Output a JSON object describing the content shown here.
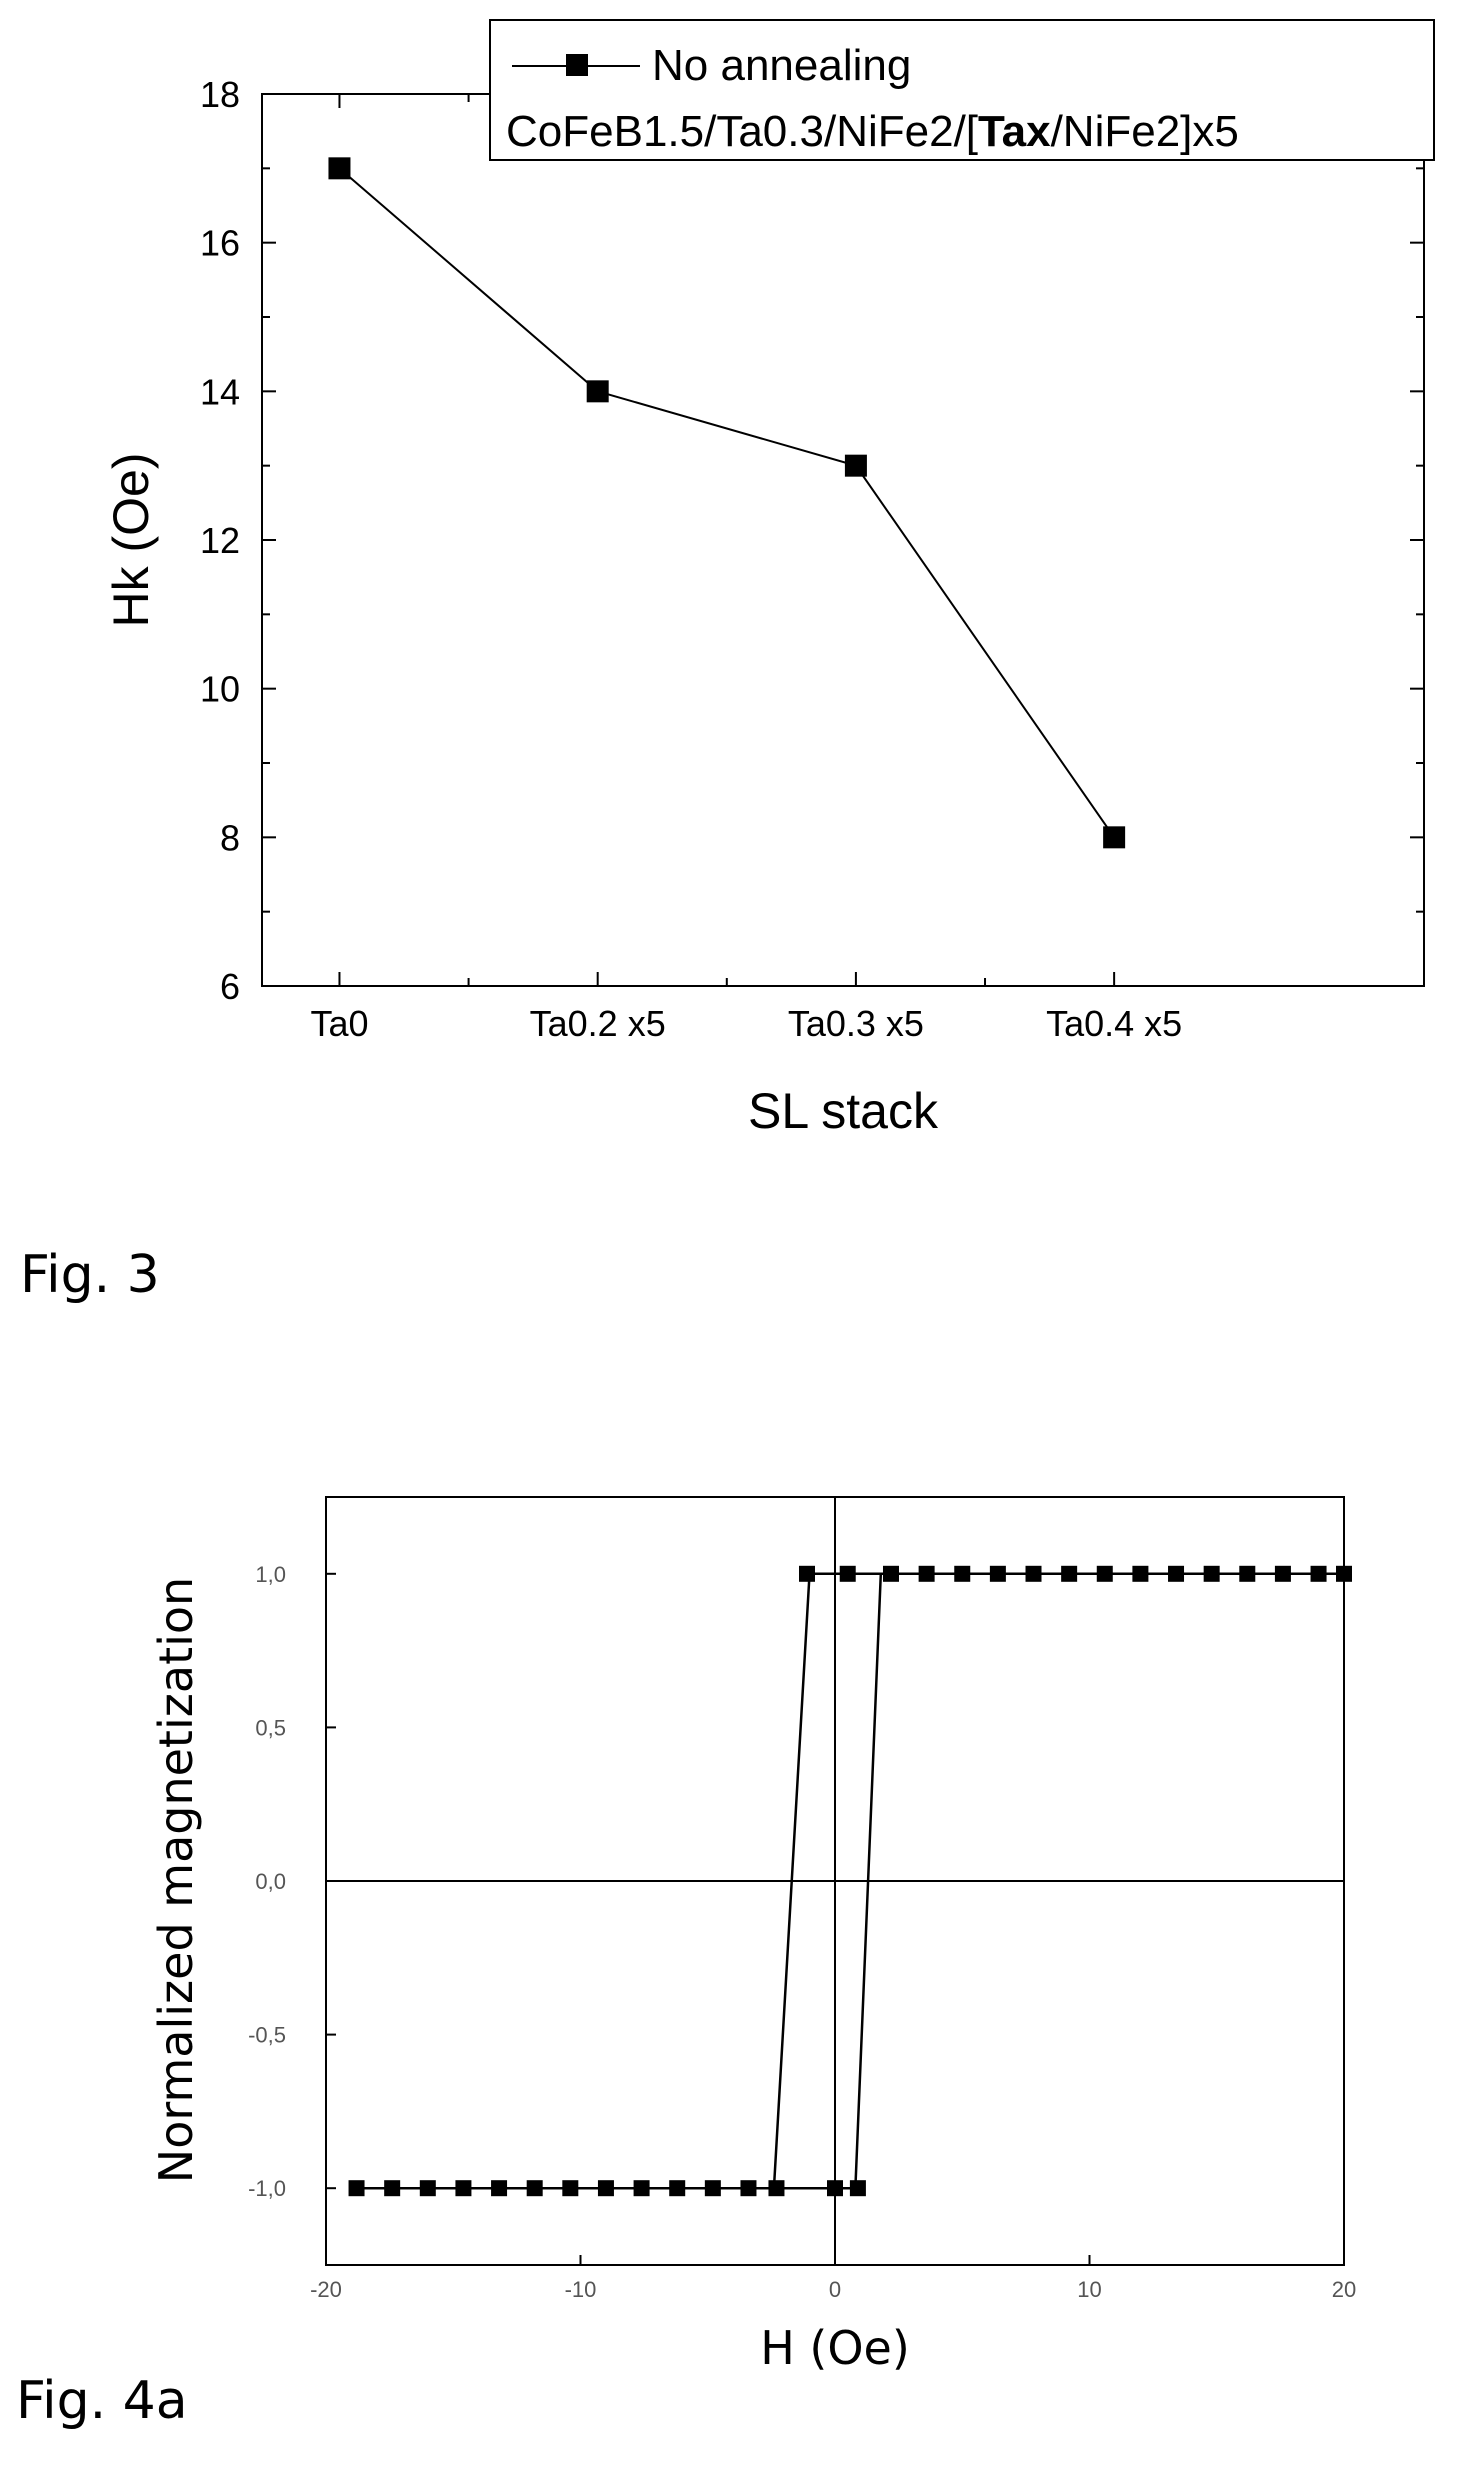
{
  "figure3": {
    "caption": "Fig. 3",
    "legend": {
      "series_label": "No annealing",
      "stack_prefix": "CoFeB1.5/Ta0.3/NiFe2/[",
      "stack_bold": "Tax",
      "stack_suffix": "/NiFe2]x5"
    }
  },
  "figure4a": {
    "caption": "Fig. 4a"
  },
  "chart_data": [
    {
      "type": "line",
      "categories": [
        "Ta0",
        "Ta0.2 x5",
        "Ta0.3 x5",
        "Ta0.4 x5"
      ],
      "series": [
        {
          "name": "No annealing",
          "values": [
            17,
            14,
            13,
            8
          ]
        }
      ],
      "xlabel": "SL stack",
      "ylabel": "Hk (Oe)",
      "ylim": [
        6,
        18
      ],
      "yticks": [
        6,
        8,
        10,
        12,
        14,
        16,
        18
      ],
      "grid": false,
      "legend_position": "top-right",
      "marker": "square",
      "color": "#000000"
    },
    {
      "type": "line",
      "xlabel": "H (Oe)",
      "ylabel": "Normalized magnetization",
      "xlim": [
        -20,
        20
      ],
      "ylim": [
        -1.25,
        1.25
      ],
      "xticks": [
        -20,
        -10,
        0,
        10,
        20
      ],
      "ytick_labels": [
        "1,0",
        "0,5",
        "0,0",
        "-0,5",
        "-1,0"
      ],
      "ytick_values": [
        1.0,
        0.5,
        0.0,
        -0.5,
        -1.0
      ],
      "grid": false,
      "marker": "square",
      "color": "#000000",
      "series": [
        {
          "x": [
            -19,
            -17.5,
            -16,
            -14.5,
            -13,
            -11.5,
            -10,
            -8.5,
            -7,
            -5.5,
            -4,
            -2.5,
            -1,
            0.8,
            1.8,
            20
          ],
          "y": [
            -1,
            -1,
            -1,
            -1,
            -1,
            -1,
            -1,
            -1,
            -1,
            -1,
            -1,
            -1,
            -1,
            -1,
            1,
            1
          ]
        },
        {
          "x": [
            20,
            18.5,
            17,
            15.5,
            14,
            12.5,
            11,
            9.5,
            8,
            6.5,
            5,
            3.5,
            2,
            0.5,
            -1,
            -2.4,
            -19
          ],
          "y": [
            1,
            1,
            1,
            1,
            1,
            1,
            1,
            1,
            1,
            1,
            1,
            1,
            1,
            1,
            1,
            -1,
            -1
          ]
        }
      ],
      "marker_points": {
        "upper_x": [
          -1.1,
          0.5,
          2.2,
          3.6,
          5.0,
          6.4,
          7.8,
          9.2,
          10.6,
          12.0,
          13.4,
          14.8,
          16.2,
          17.6,
          19.0,
          20.0
        ],
        "lower_x": [
          -18.8,
          -17.4,
          -16.0,
          -14.6,
          -13.2,
          -11.8,
          -10.4,
          -9.0,
          -7.6,
          -6.2,
          -4.8,
          -3.4,
          -2.3,
          0.0,
          0.9
        ]
      }
    }
  ]
}
